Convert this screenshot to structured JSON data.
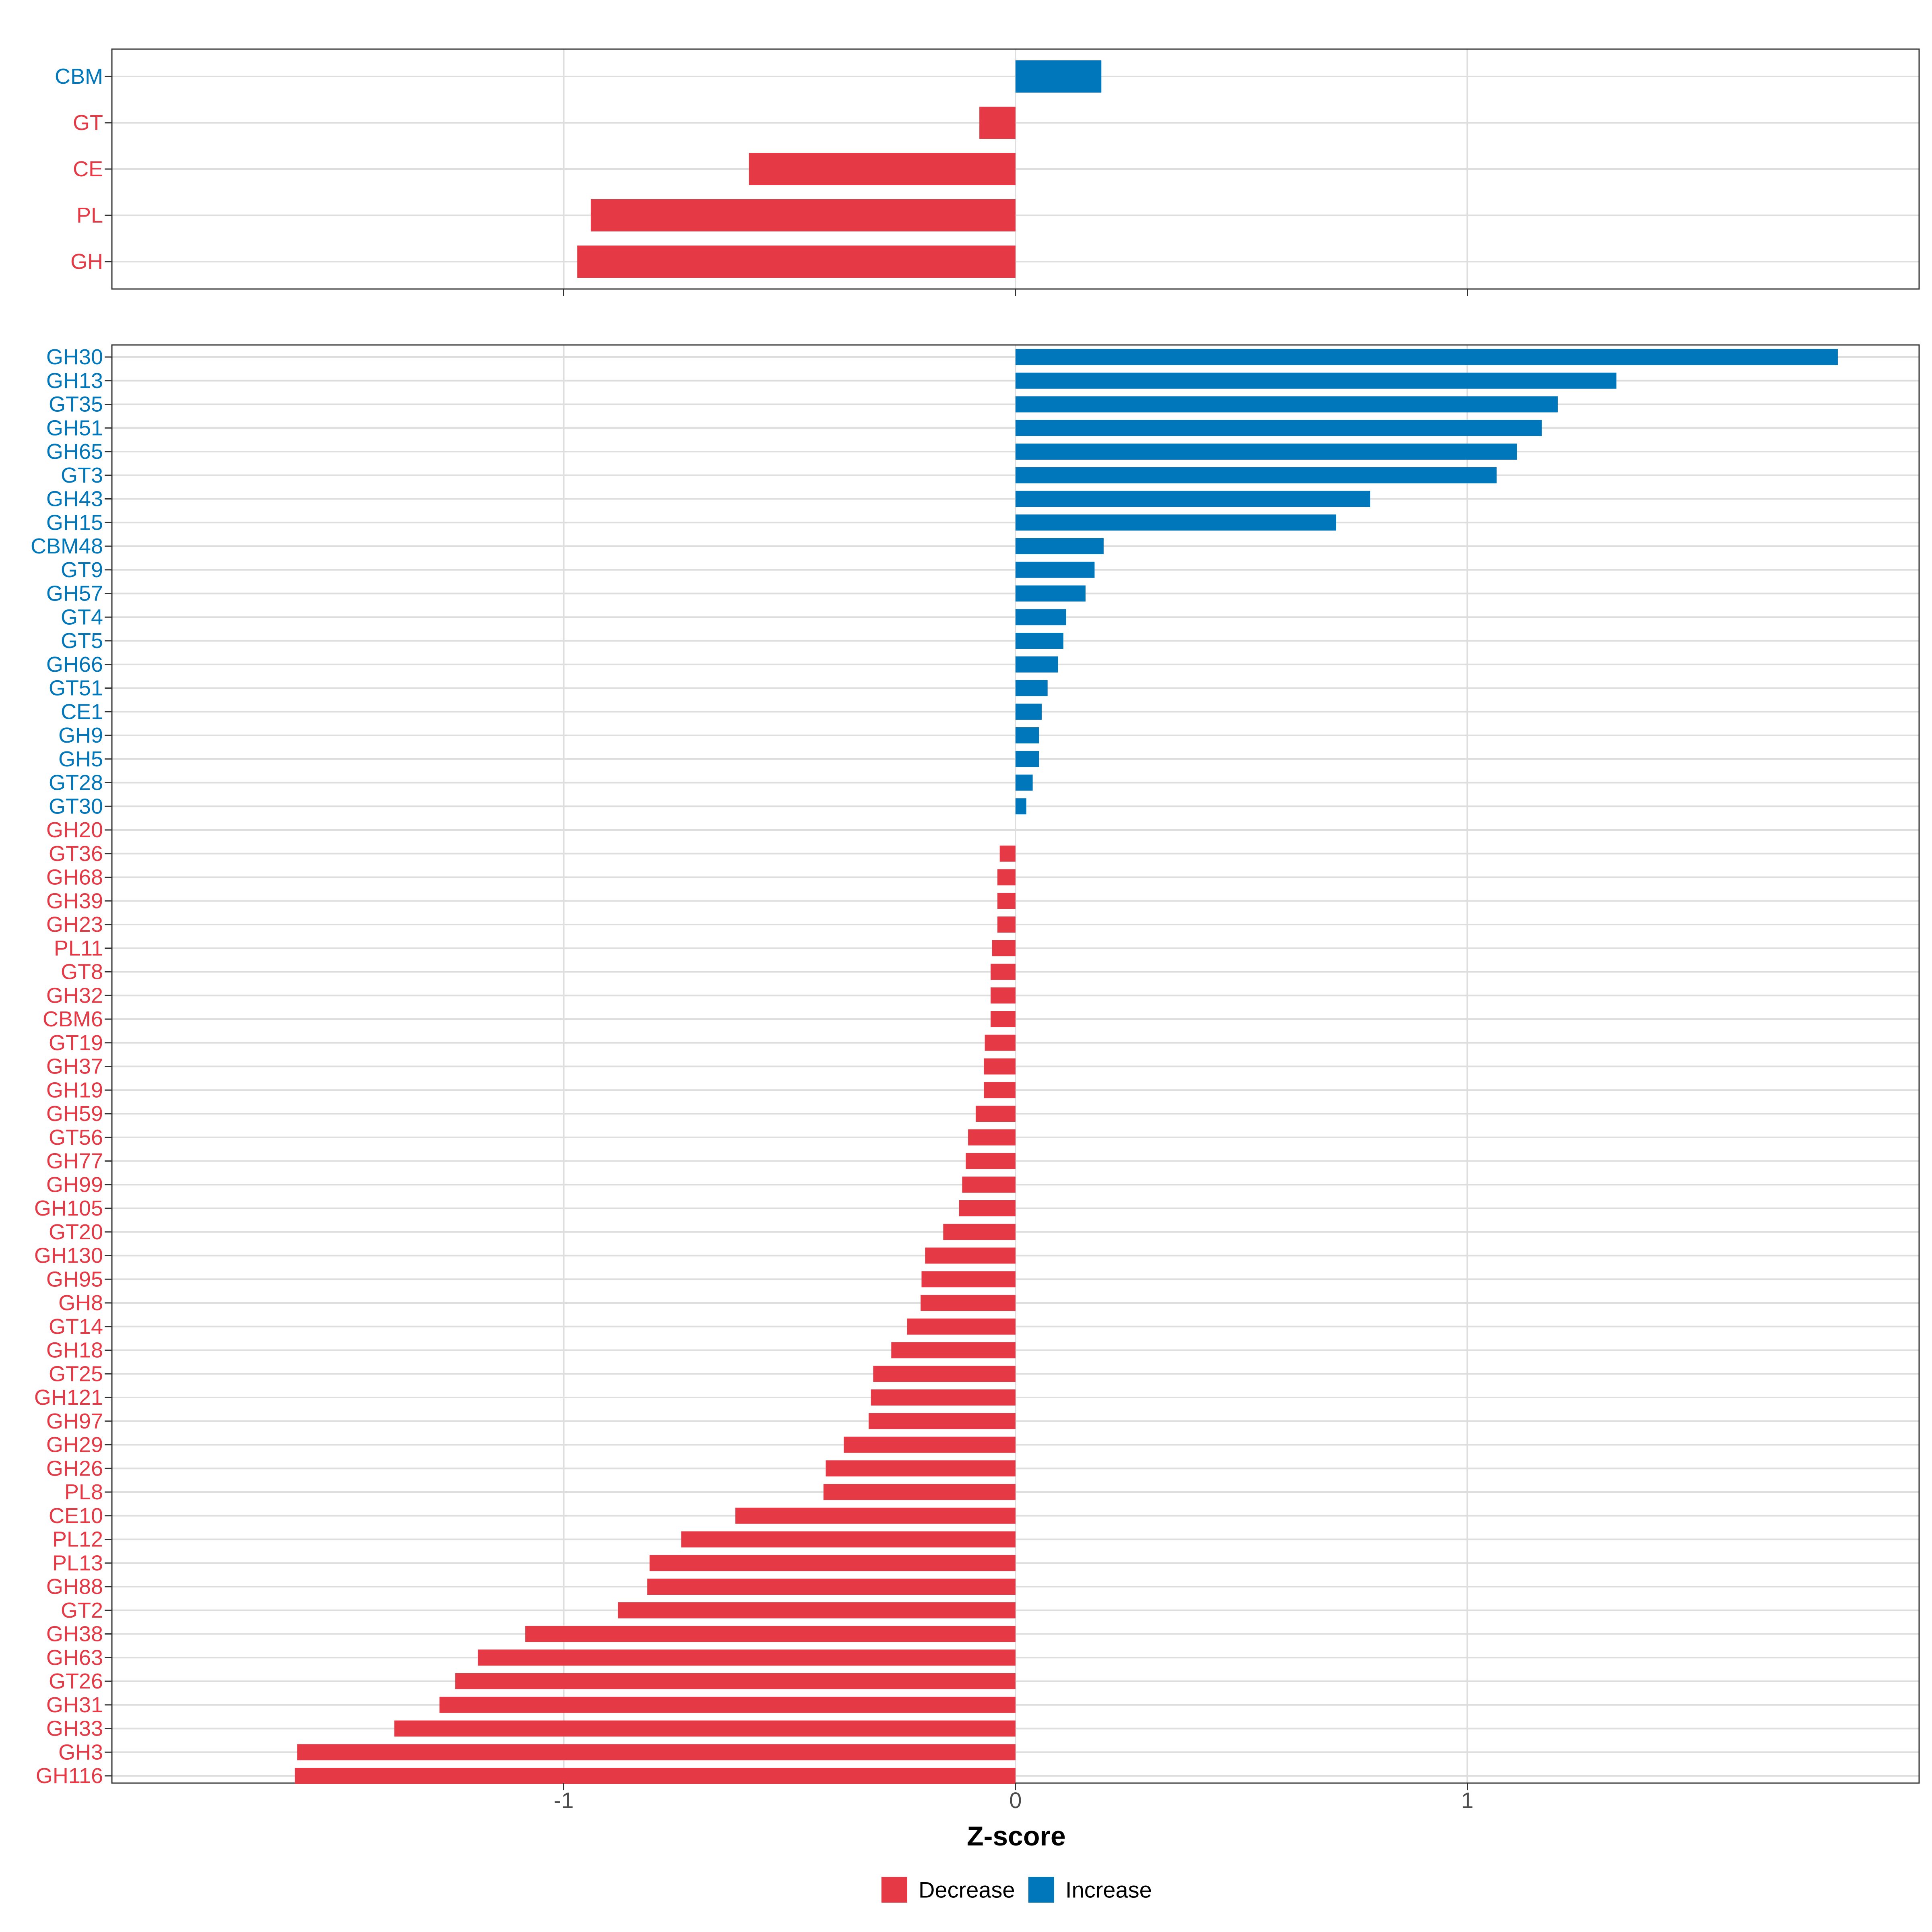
{
  "colors": {
    "decrease": "#E63946",
    "increase": "#0077BB"
  },
  "chart_data": [
    {
      "type": "bar",
      "orientation": "horizontal",
      "panel": "top",
      "categories": [
        "CBM",
        "GT",
        "CE",
        "PL",
        "GH"
      ],
      "values": [
        0.19,
        -0.08,
        -0.59,
        -0.94,
        -0.97
      ],
      "xlim": [
        -2.0,
        2.0
      ],
      "xticks": [
        -1,
        0,
        1
      ],
      "grid": true
    },
    {
      "type": "bar",
      "orientation": "horizontal",
      "panel": "bottom",
      "categories": [
        "GH30",
        "GH13",
        "GT35",
        "GH51",
        "GH65",
        "GT3",
        "GH43",
        "GH15",
        "CBM48",
        "GT9",
        "GH57",
        "GT4",
        "GT5",
        "GH66",
        "GT51",
        "CE1",
        "GH9",
        "GH5",
        "GT28",
        "GT30",
        "GH20",
        "GT36",
        "GH68",
        "GH39",
        "GH23",
        "PL11",
        "GT8",
        "GH32",
        "CBM6",
        "GT19",
        "GH37",
        "GH19",
        "GH59",
        "GT56",
        "GH77",
        "GH99",
        "GH105",
        "GT20",
        "GH130",
        "GH95",
        "GH8",
        "GT14",
        "GH18",
        "GT25",
        "GH121",
        "GH97",
        "GH29",
        "GH26",
        "PL8",
        "CE10",
        "PL12",
        "PL13",
        "GH88",
        "GT2",
        "GH38",
        "GH63",
        "GT26",
        "GH31",
        "GH33",
        "GH3",
        "GH116"
      ],
      "values": [
        1.82,
        1.33,
        1.2,
        1.165,
        1.11,
        1.065,
        0.785,
        0.71,
        0.195,
        0.175,
        0.155,
        0.112,
        0.106,
        0.094,
        0.071,
        0.058,
        0.052,
        0.052,
        0.038,
        0.024,
        0.0,
        -0.035,
        -0.04,
        -0.04,
        -0.04,
        -0.052,
        -0.055,
        -0.055,
        -0.055,
        -0.068,
        -0.07,
        -0.07,
        -0.088,
        -0.105,
        -0.11,
        -0.118,
        -0.125,
        -0.16,
        -0.2,
        -0.208,
        -0.21,
        -0.24,
        -0.275,
        -0.315,
        -0.32,
        -0.325,
        -0.38,
        -0.42,
        -0.425,
        -0.62,
        -0.74,
        -0.81,
        -0.815,
        -0.88,
        -1.085,
        -1.19,
        -1.24,
        -1.275,
        -1.375,
        -1.59,
        -1.595
      ],
      "xlim": [
        -2.0,
        2.0
      ],
      "xticks": [
        -1,
        0,
        1
      ],
      "xtick_labels": [
        "-1",
        "0",
        "1"
      ],
      "xlabel": "Z-score",
      "grid": true
    }
  ],
  "legend": {
    "position": "bottom",
    "items": [
      {
        "label": "Decrease",
        "color": "#E63946"
      },
      {
        "label": "Increase",
        "color": "#0077BB"
      }
    ]
  }
}
